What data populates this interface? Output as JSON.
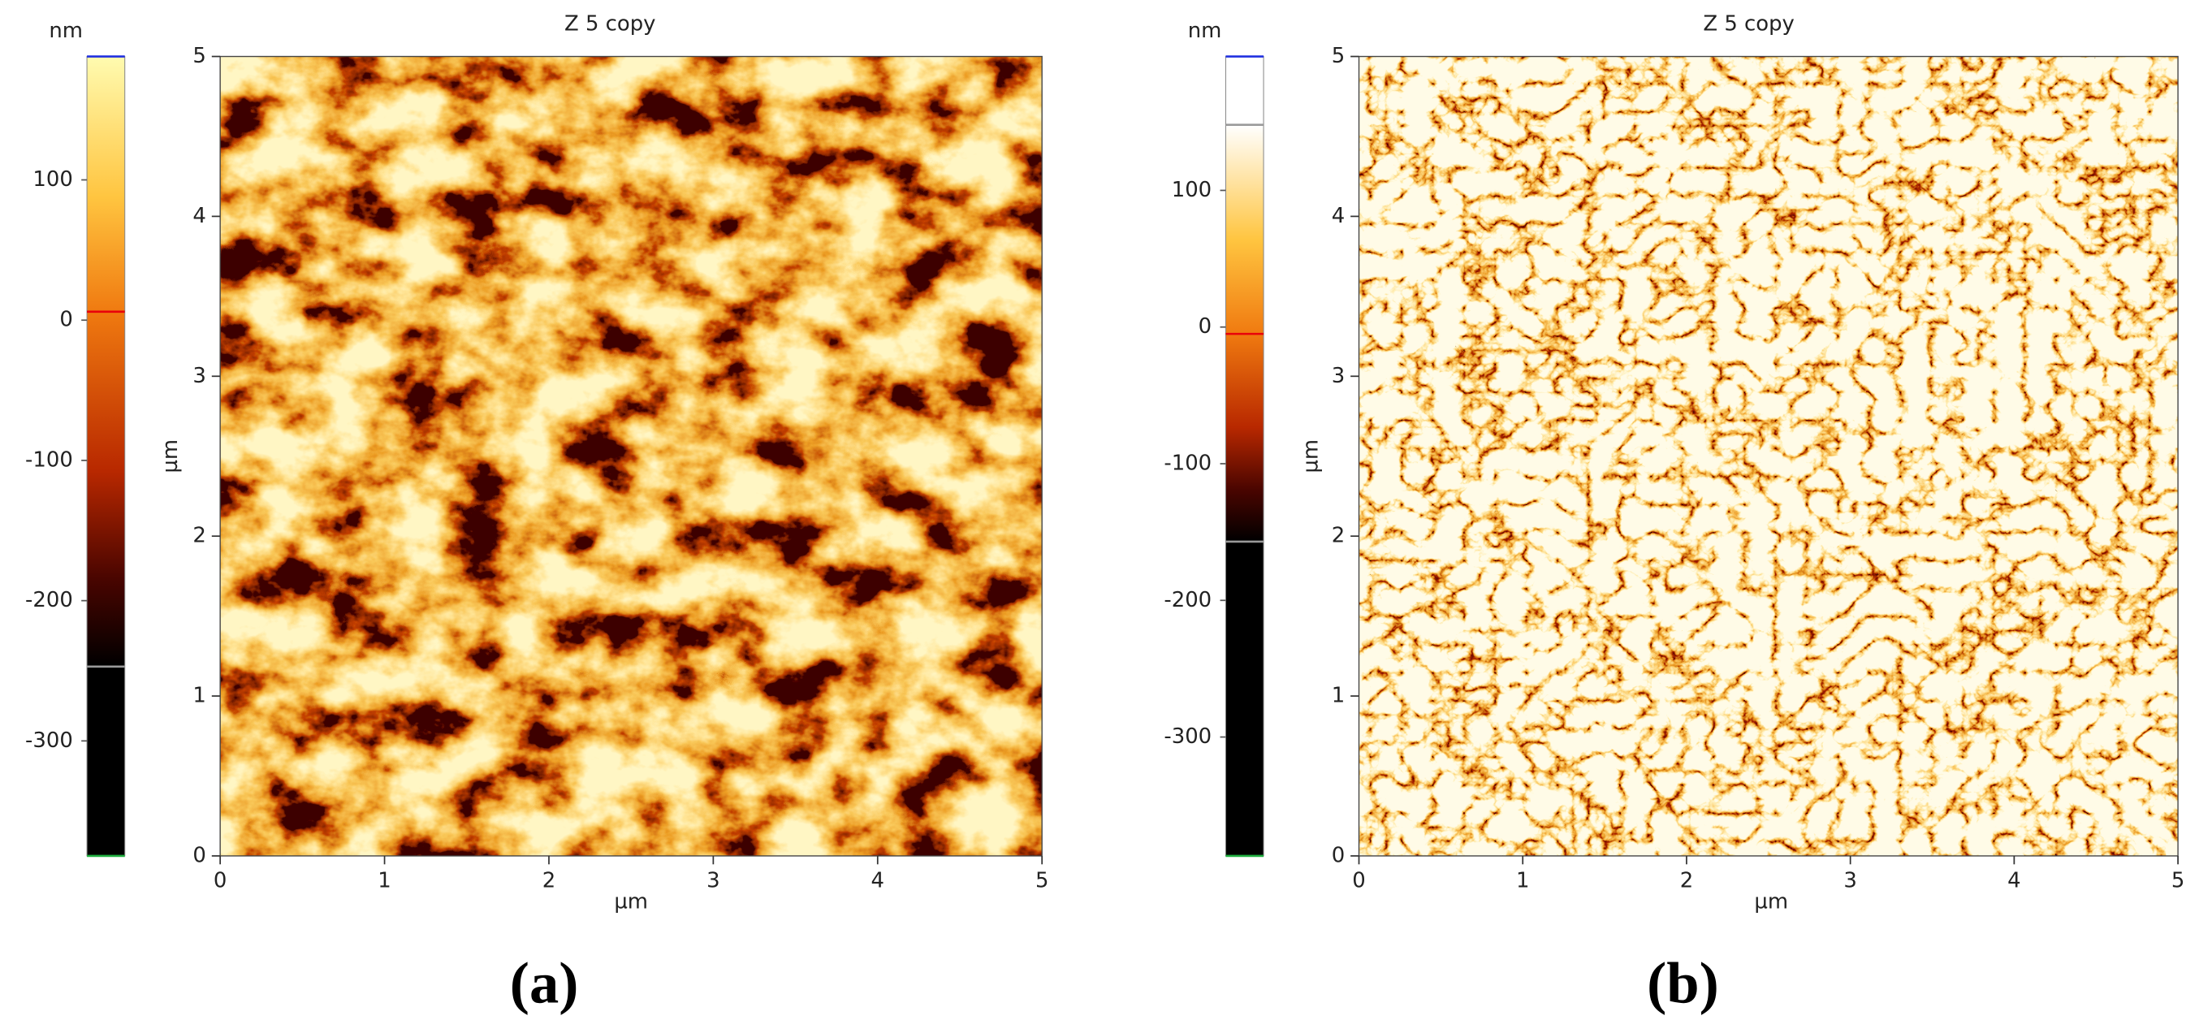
{
  "chart_data": [
    {
      "type": "image",
      "title": "Z 5 copy",
      "panel_label": "(a)",
      "x_label": "µm",
      "y_label": "µm",
      "xlim": [
        0,
        5
      ],
      "ylim": [
        0,
        5
      ],
      "xticks": [
        0,
        1,
        2,
        3,
        4,
        5
      ],
      "yticks": [
        0,
        1,
        2,
        3,
        4,
        5
      ],
      "colorbar": {
        "label": "nm",
        "lim": [
          -382,
          188
        ],
        "ticks": [
          100,
          0,
          -100,
          -200,
          -300
        ],
        "markers": [
          {
            "value": 6,
            "color": "#e8000b"
          },
          {
            "value": -247,
            "color": "#9a9a9a"
          }
        ]
      }
    },
    {
      "type": "image",
      "title": "Z 5 copy",
      "panel_label": "(b)",
      "x_label": "µm",
      "y_label": "µm",
      "xlim": [
        0,
        5
      ],
      "ylim": [
        0,
        5
      ],
      "xticks": [
        0,
        1,
        2,
        3,
        4,
        5
      ],
      "yticks": [
        0,
        1,
        2,
        3,
        4,
        5
      ],
      "colorbar": {
        "label": "nm",
        "lim": [
          -387,
          198
        ],
        "ticks": [
          100,
          0,
          -100,
          -200,
          -300
        ],
        "markers": [
          {
            "value": 148,
            "color": "#9a9a9a"
          },
          {
            "value": -5,
            "color": "#e8000b"
          },
          {
            "value": -157,
            "color": "#9a9a9a"
          }
        ]
      }
    }
  ]
}
